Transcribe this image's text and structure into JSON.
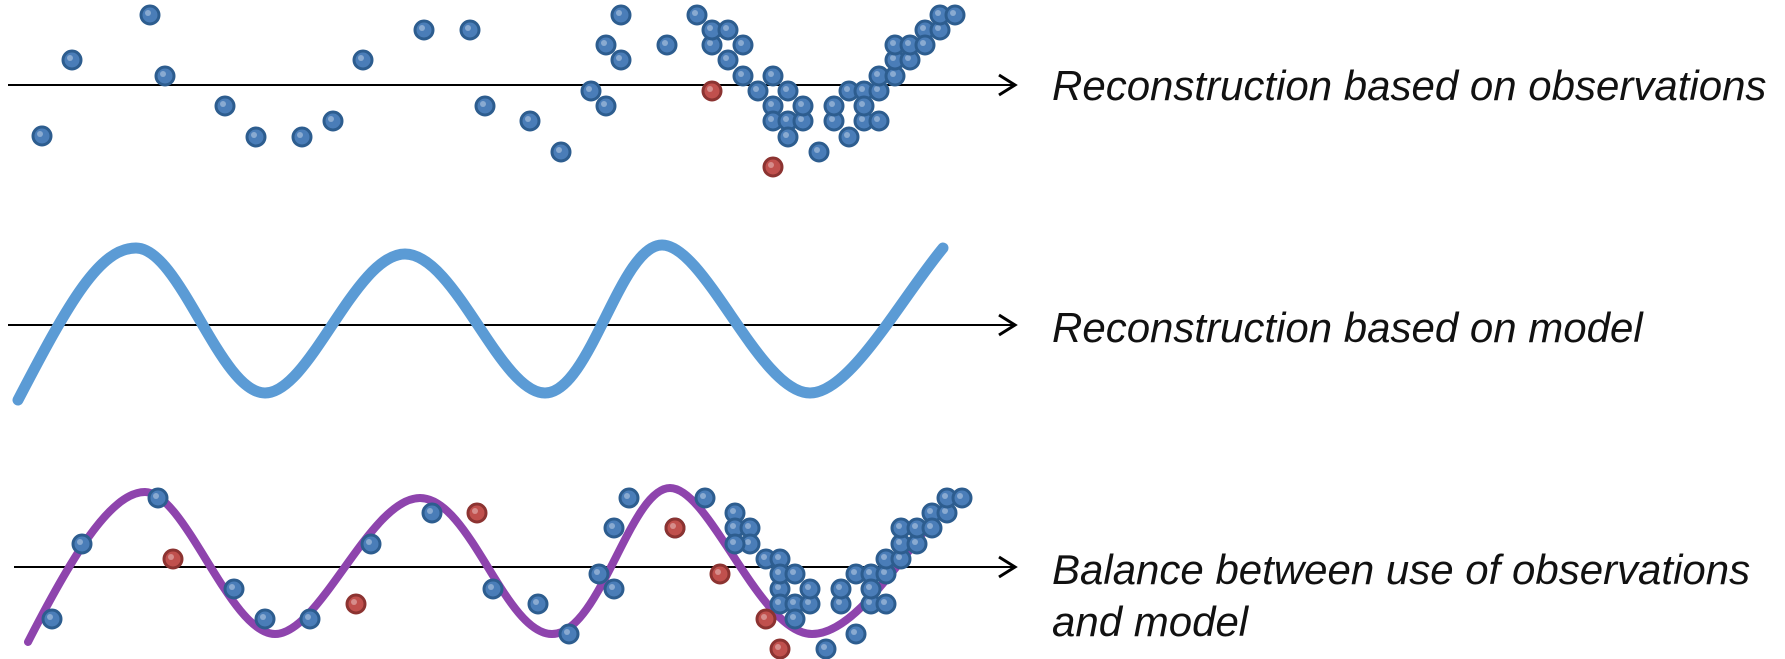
{
  "colors": {
    "observation": "#4a7db8",
    "observation_rim": "#2d5d8f",
    "outlier": "#c0504d",
    "outlier_rim": "#8c3331",
    "model_curve": "#5b9bd5",
    "balanced_curve": "#8e44ad",
    "axis": "#000000"
  },
  "rows": [
    {
      "label": "Reconstruction based on observations",
      "show_curve": false,
      "points": [
        [
          42,
          136,
          0
        ],
        [
          72,
          60,
          0
        ],
        [
          150,
          15,
          0
        ],
        [
          165,
          76,
          0
        ],
        [
          225,
          106,
          0
        ],
        [
          256,
          137,
          0
        ],
        [
          302,
          137,
          0
        ],
        [
          333,
          121,
          0
        ],
        [
          363,
          60,
          0
        ],
        [
          424,
          30,
          0
        ],
        [
          470,
          30,
          0
        ],
        [
          485,
          106,
          0
        ],
        [
          530,
          121,
          0
        ],
        [
          561,
          152,
          0
        ],
        [
          591,
          91,
          0
        ],
        [
          606,
          106,
          0
        ],
        [
          606,
          45,
          0
        ],
        [
          621,
          15,
          0
        ],
        [
          621,
          60,
          0
        ],
        [
          697,
          15,
          0
        ],
        [
          667,
          45,
          0
        ],
        [
          712,
          45,
          0
        ],
        [
          712,
          30,
          0
        ],
        [
          728,
          30,
          0
        ],
        [
          743,
          45,
          0
        ],
        [
          728,
          60,
          0
        ],
        [
          743,
          76,
          0
        ],
        [
          758,
          91,
          0
        ],
        [
          773,
          76,
          0
        ],
        [
          773,
          106,
          0
        ],
        [
          788,
          91,
          0
        ],
        [
          773,
          121,
          0
        ],
        [
          788,
          121,
          0
        ],
        [
          803,
          121,
          0
        ],
        [
          788,
          137,
          0
        ],
        [
          803,
          106,
          0
        ],
        [
          819,
          152,
          0
        ],
        [
          834,
          121,
          0
        ],
        [
          834,
          106,
          0
        ],
        [
          849,
          137,
          0
        ],
        [
          864,
          121,
          0
        ],
        [
          849,
          91,
          0
        ],
        [
          864,
          91,
          0
        ],
        [
          864,
          106,
          0
        ],
        [
          879,
          91,
          0
        ],
        [
          879,
          121,
          0
        ],
        [
          879,
          76,
          0
        ],
        [
          895,
          76,
          0
        ],
        [
          895,
          60,
          0
        ],
        [
          910,
          60,
          0
        ],
        [
          895,
          45,
          0
        ],
        [
          910,
          45,
          0
        ],
        [
          925,
          30,
          0
        ],
        [
          925,
          45,
          0
        ],
        [
          940,
          30,
          0
        ],
        [
          940,
          15,
          0
        ],
        [
          955,
          15,
          0
        ],
        [
          712,
          91,
          1
        ],
        [
          773,
          167,
          1
        ]
      ]
    },
    {
      "label": "Reconstruction based on model",
      "show_curve": true,
      "curve": "model",
      "points": []
    },
    {
      "label": "Balance between use of observations and model",
      "show_curve": true,
      "curve": "balanced",
      "points": [
        [
          52,
          619,
          0
        ],
        [
          82,
          544,
          0
        ],
        [
          158,
          498,
          0
        ],
        [
          234,
          589,
          0
        ],
        [
          265,
          619,
          0
        ],
        [
          310,
          619,
          0
        ],
        [
          371,
          544,
          0
        ],
        [
          432,
          513,
          0
        ],
        [
          493,
          589,
          0
        ],
        [
          538,
          604,
          0
        ],
        [
          569,
          634,
          0
        ],
        [
          599,
          574,
          0
        ],
        [
          614,
          589,
          0
        ],
        [
          614,
          528,
          0
        ],
        [
          629,
          498,
          0
        ],
        [
          705,
          498,
          0
        ],
        [
          675,
          528,
          0
        ],
        [
          735,
          513,
          0
        ],
        [
          735,
          528,
          0
        ],
        [
          750,
          528,
          0
        ],
        [
          750,
          544,
          0
        ],
        [
          735,
          544,
          0
        ],
        [
          766,
          559,
          0
        ],
        [
          780,
          559,
          0
        ],
        [
          780,
          589,
          0
        ],
        [
          780,
          574,
          0
        ],
        [
          795,
          574,
          0
        ],
        [
          780,
          604,
          0
        ],
        [
          795,
          604,
          0
        ],
        [
          810,
          604,
          0
        ],
        [
          795,
          619,
          0
        ],
        [
          810,
          589,
          0
        ],
        [
          826,
          649,
          0
        ],
        [
          841,
          604,
          0
        ],
        [
          841,
          589,
          0
        ],
        [
          856,
          634,
          0
        ],
        [
          871,
          604,
          0
        ],
        [
          856,
          574,
          0
        ],
        [
          871,
          574,
          0
        ],
        [
          871,
          589,
          0
        ],
        [
          886,
          574,
          0
        ],
        [
          886,
          604,
          0
        ],
        [
          886,
          559,
          0
        ],
        [
          901,
          559,
          0
        ],
        [
          901,
          544,
          0
        ],
        [
          917,
          544,
          0
        ],
        [
          901,
          528,
          0
        ],
        [
          917,
          528,
          0
        ],
        [
          932,
          513,
          0
        ],
        [
          932,
          528,
          0
        ],
        [
          947,
          513,
          0
        ],
        [
          947,
          498,
          0
        ],
        [
          962,
          498,
          0
        ],
        [
          173,
          559,
          1
        ],
        [
          356,
          604,
          1
        ],
        [
          477,
          513,
          1
        ],
        [
          675,
          528,
          1
        ],
        [
          720,
          574,
          1
        ],
        [
          766,
          619,
          1
        ],
        [
          780,
          649,
          1
        ]
      ]
    }
  ]
}
